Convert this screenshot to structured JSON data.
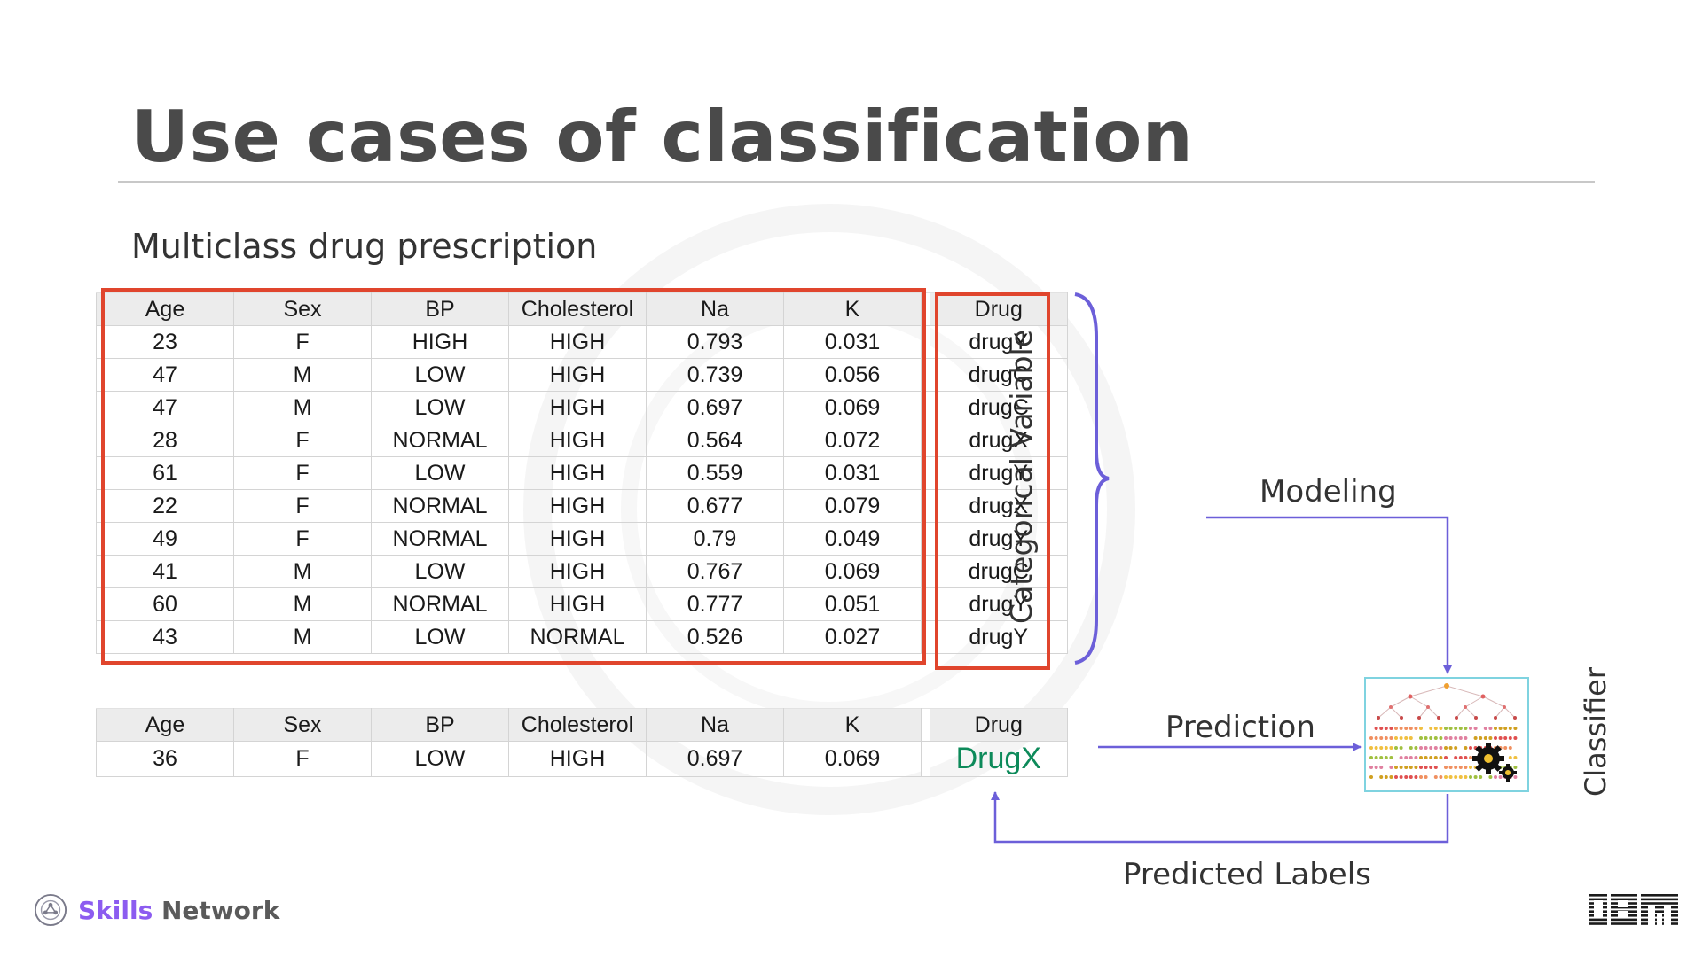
{
  "slide": {
    "title": "Use cases of classification",
    "subtitle": "Multiclass drug prescription"
  },
  "training_table": {
    "headers": [
      "Age",
      "Sex",
      "BP",
      "Cholesterol",
      "Na",
      "K",
      "Drug"
    ],
    "rows": [
      [
        "23",
        "F",
        "HIGH",
        "HIGH",
        "0.793",
        "0.031",
        "drugY"
      ],
      [
        "47",
        "M",
        "LOW",
        "HIGH",
        "0.739",
        "0.056",
        "drugC"
      ],
      [
        "47",
        "M",
        "LOW",
        "HIGH",
        "0.697",
        "0.069",
        "drugC"
      ],
      [
        "28",
        "F",
        "NORMAL",
        "HIGH",
        "0.564",
        "0.072",
        "drugX"
      ],
      [
        "61",
        "F",
        "LOW",
        "HIGH",
        "0.559",
        "0.031",
        "drugY"
      ],
      [
        "22",
        "F",
        "NORMAL",
        "HIGH",
        "0.677",
        "0.079",
        "drugX"
      ],
      [
        "49",
        "F",
        "NORMAL",
        "HIGH",
        "0.79",
        "0.049",
        "drugY"
      ],
      [
        "41",
        "M",
        "LOW",
        "HIGH",
        "0.767",
        "0.069",
        "drugC"
      ],
      [
        "60",
        "M",
        "NORMAL",
        "HIGH",
        "0.777",
        "0.051",
        "drugY"
      ],
      [
        "43",
        "M",
        "LOW",
        "NORMAL",
        "0.526",
        "0.027",
        "drugY"
      ]
    ]
  },
  "test_table": {
    "headers": [
      "Age",
      "Sex",
      "BP",
      "Cholesterol",
      "Na",
      "K",
      "Drug"
    ],
    "row": [
      "36",
      "F",
      "LOW",
      "HIGH",
      "0.697",
      "0.069",
      "DrugX"
    ]
  },
  "diagram": {
    "categorical_variable_label": "Categorical Variable",
    "modeling_label": "Modeling",
    "prediction_label": "Prediction",
    "classifier_label": "Classifier",
    "predicted_labels_label": "Predicted Labels"
  },
  "colors": {
    "highlight_box": "#e0452d",
    "arrow": "#6c5fd9",
    "predicted_text": "#0d8a5a",
    "brand_purple": "#8c5cf0"
  },
  "branding": {
    "name_part1": "Skills",
    "name_part2": "Network",
    "company": "IBM"
  }
}
